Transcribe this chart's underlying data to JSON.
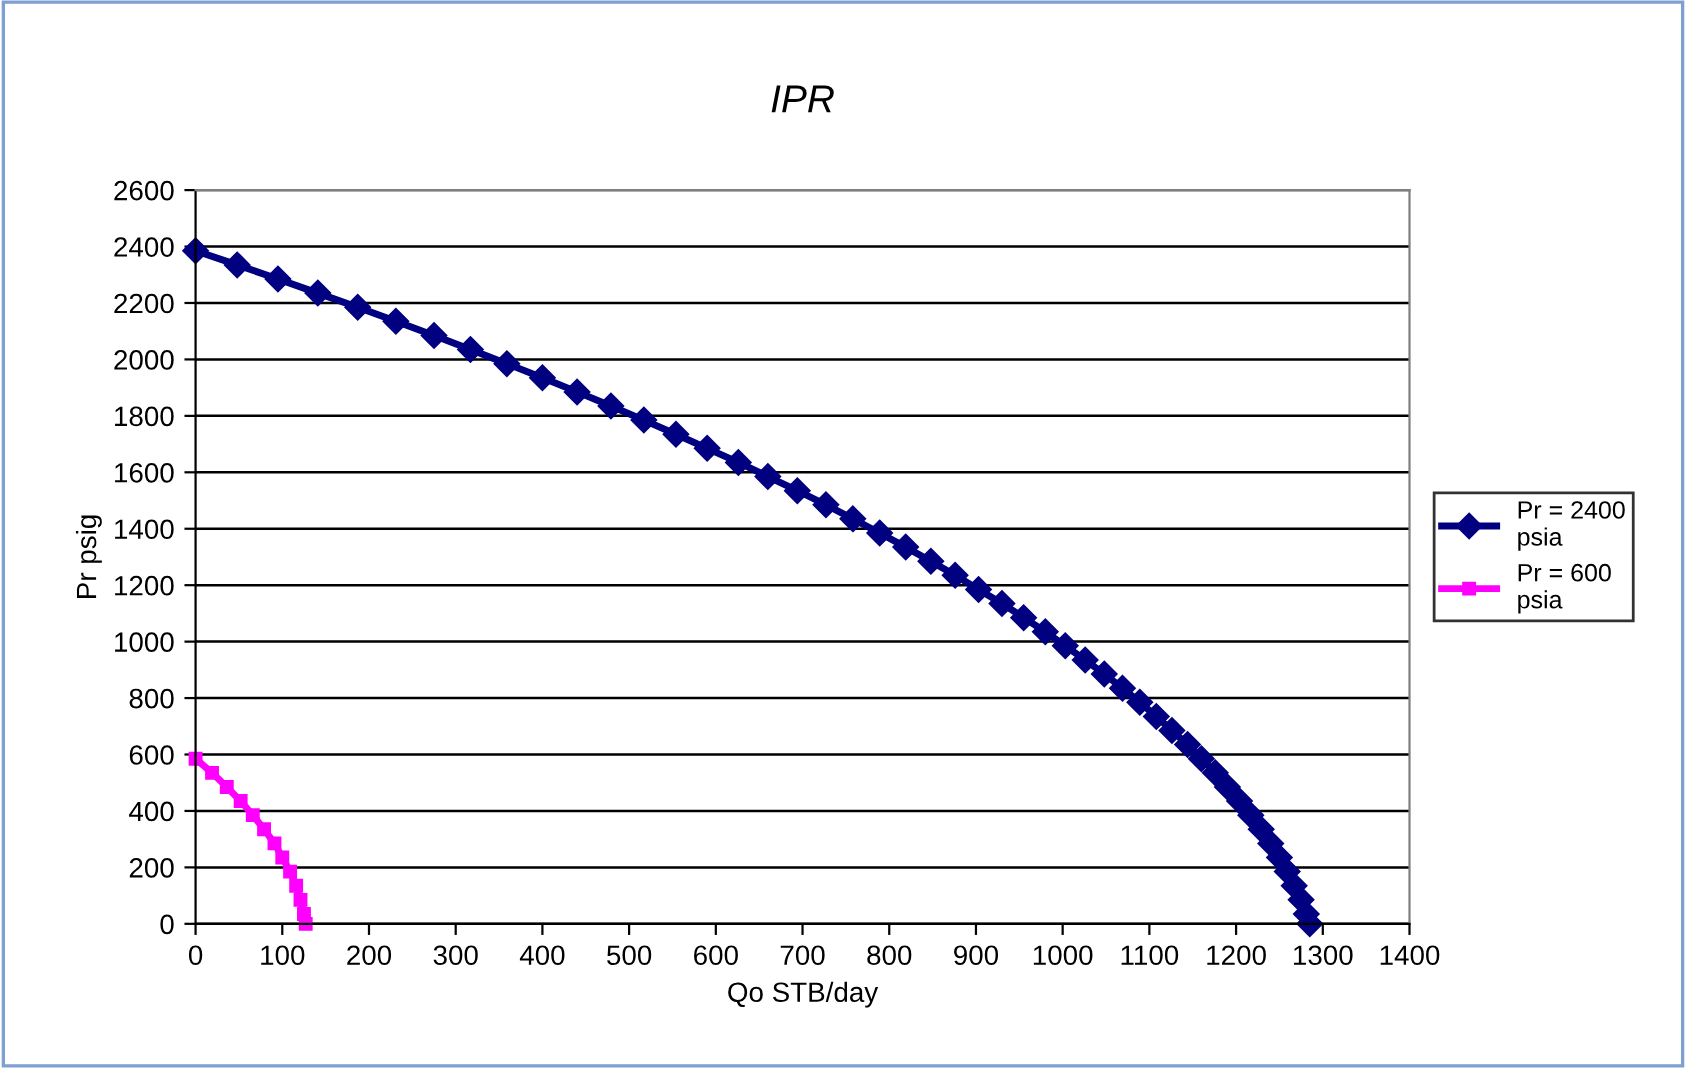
{
  "chart_data": {
    "type": "line",
    "title": "IPR",
    "xlabel": "Qo STB/day",
    "ylabel": "Pr psig",
    "xlim": [
      0,
      1400
    ],
    "xticks": [
      0,
      100,
      200,
      300,
      400,
      500,
      600,
      700,
      800,
      900,
      1000,
      1100,
      1200,
      1300,
      1400
    ],
    "ylim": [
      0,
      2600
    ],
    "yticks": [
      0,
      200,
      400,
      600,
      800,
      1000,
      1200,
      1400,
      1600,
      1800,
      2000,
      2200,
      2400,
      2600
    ],
    "grid": "y",
    "legend": "right",
    "line_style": "solid",
    "series": [
      {
        "name": "Pr = 2400 psia",
        "color": "#000080",
        "marker": "diamond",
        "x": [
          0,
          48,
          95,
          141,
          187,
          231,
          275,
          317,
          359,
          400,
          440,
          479,
          517,
          554,
          590,
          626,
          660,
          694,
          727,
          758,
          789,
          819,
          848,
          876,
          903,
          930,
          955,
          980,
          1003,
          1026,
          1048,
          1069,
          1089,
          1108,
          1126,
          1144,
          1160,
          1176,
          1190,
          1204,
          1217,
          1229,
          1240,
          1250,
          1259,
          1267,
          1275,
          1281,
          1285
        ],
        "values": [
          2385,
          2335,
          2285,
          2235,
          2185,
          2135,
          2085,
          2035,
          1985,
          1935,
          1885,
          1835,
          1785,
          1735,
          1685,
          1635,
          1585,
          1535,
          1485,
          1435,
          1385,
          1335,
          1285,
          1235,
          1185,
          1135,
          1085,
          1035,
          985,
          935,
          885,
          835,
          785,
          735,
          685,
          635,
          585,
          535,
          485,
          435,
          385,
          335,
          285,
          235,
          185,
          135,
          85,
          35,
          0
        ]
      },
      {
        "name": "Pr = 600 psia",
        "color": "#ff00ff",
        "marker": "square",
        "x": [
          0,
          19,
          36,
          52,
          66,
          79,
          91,
          100,
          109,
          116,
          121,
          125,
          127
        ],
        "values": [
          585,
          535,
          485,
          435,
          385,
          335,
          285,
          235,
          185,
          135,
          85,
          35,
          0
        ]
      }
    ]
  }
}
